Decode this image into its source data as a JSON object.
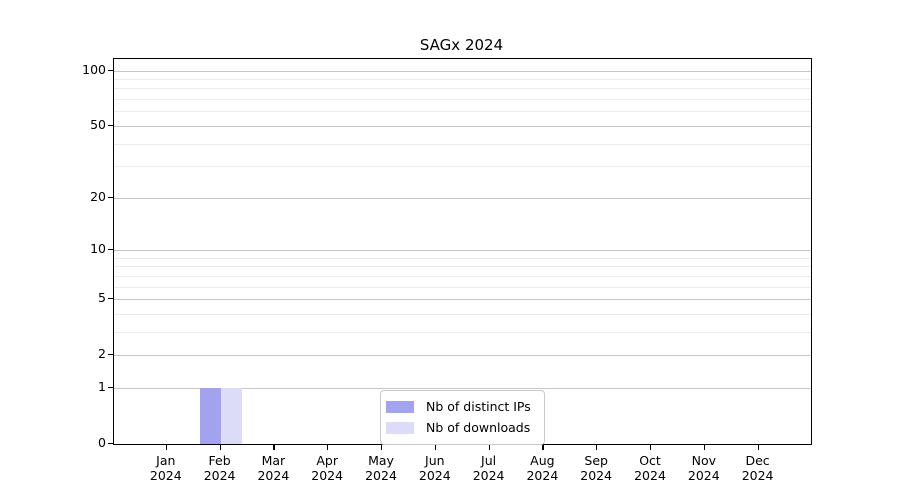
{
  "figure": {
    "background": "#ffffff",
    "spine_color": "#000000"
  },
  "chart_data": {
    "type": "bar",
    "title": "SAGx 2024",
    "x_categories": [
      {
        "month": "Jan",
        "year": "2024"
      },
      {
        "month": "Feb",
        "year": "2024"
      },
      {
        "month": "Mar",
        "year": "2024"
      },
      {
        "month": "Apr",
        "year": "2024"
      },
      {
        "month": "May",
        "year": "2024"
      },
      {
        "month": "Jun",
        "year": "2024"
      },
      {
        "month": "Jul",
        "year": "2024"
      },
      {
        "month": "Aug",
        "year": "2024"
      },
      {
        "month": "Sep",
        "year": "2024"
      },
      {
        "month": "Oct",
        "year": "2024"
      },
      {
        "month": "Nov",
        "year": "2024"
      },
      {
        "month": "Dec",
        "year": "2024"
      }
    ],
    "series": [
      {
        "name": "Nb of distinct IPs",
        "color": "#a2a2ee",
        "values": [
          0,
          1,
          0,
          0,
          0,
          0,
          0,
          0,
          0,
          0,
          0,
          0
        ]
      },
      {
        "name": "Nb of downloads",
        "color": "#dcdcf8",
        "values": [
          0,
          1,
          0,
          0,
          0,
          0,
          0,
          0,
          0,
          0,
          0,
          0
        ]
      }
    ],
    "y_axis": {
      "scale": "log1p",
      "major_ticks": [
        0,
        1,
        2,
        5,
        10,
        20,
        50,
        100
      ],
      "minor_gridlines": [
        3,
        4,
        6,
        7,
        8,
        9,
        30,
        40,
        60,
        70,
        80,
        90
      ],
      "range": [
        0,
        115
      ]
    },
    "grid": {
      "major_color": "#c6c6c6",
      "minor_color": "#ebebeb"
    },
    "legend": {
      "position": "lower center",
      "items": [
        {
          "label": "Nb of distinct IPs",
          "color": "#a2a2ee"
        },
        {
          "label": "Nb of downloads",
          "color": "#dcdcf8"
        }
      ]
    }
  }
}
